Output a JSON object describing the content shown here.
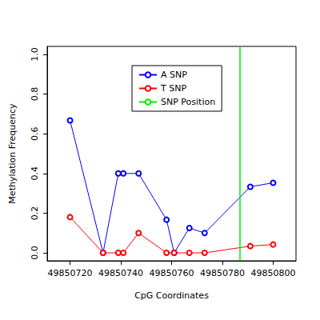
{
  "chart_data": {
    "type": "line",
    "x_label": "CpG Coordinates",
    "y_label": "Methylation Frequency",
    "x": [
      49850720,
      49850733,
      49850739,
      49850741,
      49850747,
      49850758,
      49850761,
      49850767,
      49850773,
      49850791,
      49850800
    ],
    "series": [
      {
        "name": "A SNP",
        "color": "#0000ff",
        "marker": "circle",
        "values": [
          0.667,
          0.0,
          0.4,
          0.4,
          0.4,
          0.167,
          0.0,
          0.125,
          0.1,
          0.333,
          0.353
        ]
      },
      {
        "name": "T SNP",
        "color": "#ff0000",
        "marker": "circle",
        "values": [
          0.18,
          0.0,
          0.0,
          0.0,
          0.1,
          0.0,
          0.0,
          0.0,
          0.0,
          0.034,
          0.042
        ]
      },
      {
        "name": "SNP Position",
        "color": "#00ee00",
        "type": "vline",
        "x": 49850787
      }
    ],
    "xlim": [
      49850711,
      49850809
    ],
    "xticks": [
      49850720,
      49850740,
      49850760,
      49850780,
      49850800
    ],
    "ylim": [
      -0.04,
      1.04
    ],
    "yticks": [
      {
        "value": 0,
        "label": "0.0"
      },
      0.2,
      0.4,
      0.6,
      0.8,
      {
        "value": 1,
        "label": "1.0"
      }
    ],
    "grid": false,
    "legend": "top-left"
  }
}
